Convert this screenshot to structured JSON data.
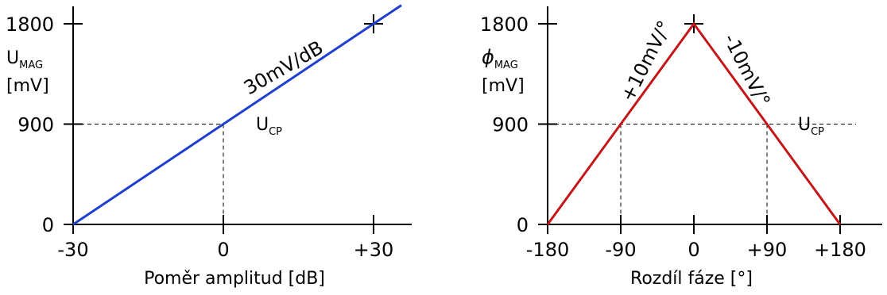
{
  "chart_data": [
    {
      "type": "line",
      "x": [
        -30,
        30
      ],
      "series": [
        {
          "values": [
            0,
            1800
          ],
          "color": "#1f3fcf"
        }
      ],
      "xlim": [
        -30,
        30
      ],
      "ylim": [
        0,
        1800
      ],
      "x_ticks": [
        "-30",
        "0",
        "+30"
      ],
      "y_ticks": [
        "0",
        "900",
        "1800"
      ],
      "xlabel": "Poměr amplitud  [dB]",
      "ylabel": {
        "main": "U",
        "sub": "MAG",
        "unit": "[mV]"
      },
      "slope_label": "30mV/dB",
      "point_label": {
        "main": "U",
        "sub": "CP"
      },
      "reference": {
        "x": [
          0
        ],
        "y": 900
      },
      "grid": false
    },
    {
      "type": "line",
      "x": [
        -180,
        0,
        180
      ],
      "series": [
        {
          "values": [
            0,
            1800,
            0
          ],
          "color": "#c41616"
        }
      ],
      "xlim": [
        -180,
        180
      ],
      "ylim": [
        0,
        1800
      ],
      "x_ticks": [
        "-180",
        "-90",
        "0",
        "+90",
        "+180"
      ],
      "y_ticks": [
        "0",
        "900",
        "1800"
      ],
      "xlabel": "Rozdíl fáze [°]",
      "ylabel": {
        "main": "ϕ",
        "sub": "MAG",
        "unit": "[mV]"
      },
      "slope_labels": [
        "+10mV/°",
        "-10mV/°"
      ],
      "point_label": {
        "main": "U",
        "sub": "CP"
      },
      "reference": {
        "x": [
          -90,
          90
        ],
        "y": 900
      },
      "grid": false
    }
  ]
}
